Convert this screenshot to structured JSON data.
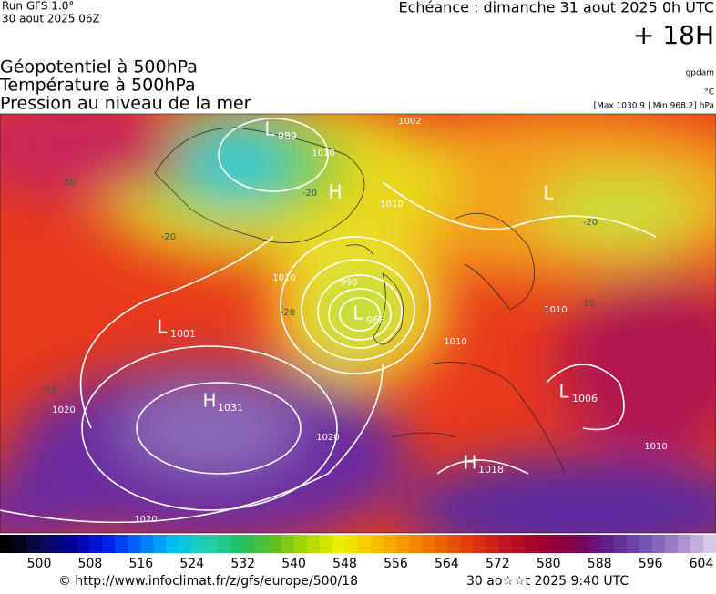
{
  "header": {
    "run": "Run GFS 1.0°",
    "run_date": "30 aout 2025 06Z",
    "valid": "Echéance : dimanche 31 aout 2025 0h UTC",
    "lead": "+ 18H",
    "fields": [
      "Géopotentiel à 500hPa",
      "Température à 500hPa",
      "Pression au niveau de la mer"
    ],
    "units": [
      "gpdam",
      "°C",
      "[Max 1030.9 | Min 968.2] hPa"
    ]
  },
  "centers": [
    {
      "letter": "L",
      "value": 989
    },
    {
      "letter": "H"
    },
    {
      "letter": "L"
    },
    {
      "letter": "L",
      "value": 1001
    },
    {
      "letter": "L",
      "value": 968
    },
    {
      "letter": "H",
      "value": 1031
    },
    {
      "letter": "L",
      "value": 1006
    },
    {
      "letter": "H",
      "value": 1018
    }
  ],
  "isobar_labels": [
    1002,
    1010,
    1010,
    1010,
    990,
    1020,
    1020,
    1020,
    1010,
    1010,
    1010
  ],
  "temp_labels": [
    -20,
    -20,
    -20,
    -10,
    -10,
    -10,
    -20
  ],
  "legend": {
    "ticks": [
      500,
      508,
      516,
      524,
      532,
      540,
      548,
      556,
      564,
      572,
      580,
      588,
      596,
      604
    ]
  },
  "footer": {
    "source": "© http://www.infoclimat.fr/z/gfs/europe/500/18",
    "generated": "30 ao☆☆t 2025  9:40 UTC"
  }
}
